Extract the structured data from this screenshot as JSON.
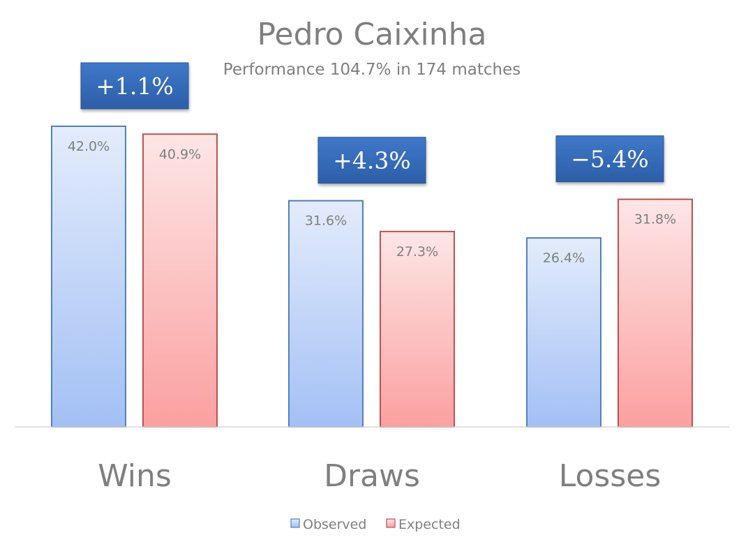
{
  "chart_data": {
    "type": "bar",
    "title": "Pedro Caixinha",
    "subtitle": "Performance 104.7% in 174 matches",
    "categories": [
      "Wins",
      "Draws",
      "Losses"
    ],
    "series": [
      {
        "name": "Observed",
        "values": [
          42.0,
          31.6,
          26.4
        ],
        "labels": [
          "42.0%",
          "31.6%",
          "26.4%"
        ],
        "color": "#4f81bd"
      },
      {
        "name": "Expected",
        "values": [
          40.9,
          27.3,
          31.8
        ],
        "labels": [
          "40.9%",
          "27.3%",
          "31.8%"
        ],
        "color": "#c0504d"
      }
    ],
    "differences": [
      "+1.1%",
      "+4.3%",
      "−5.4%"
    ],
    "ylim": [
      0,
      42.0
    ],
    "grid": false,
    "legend_position": "bottom"
  }
}
